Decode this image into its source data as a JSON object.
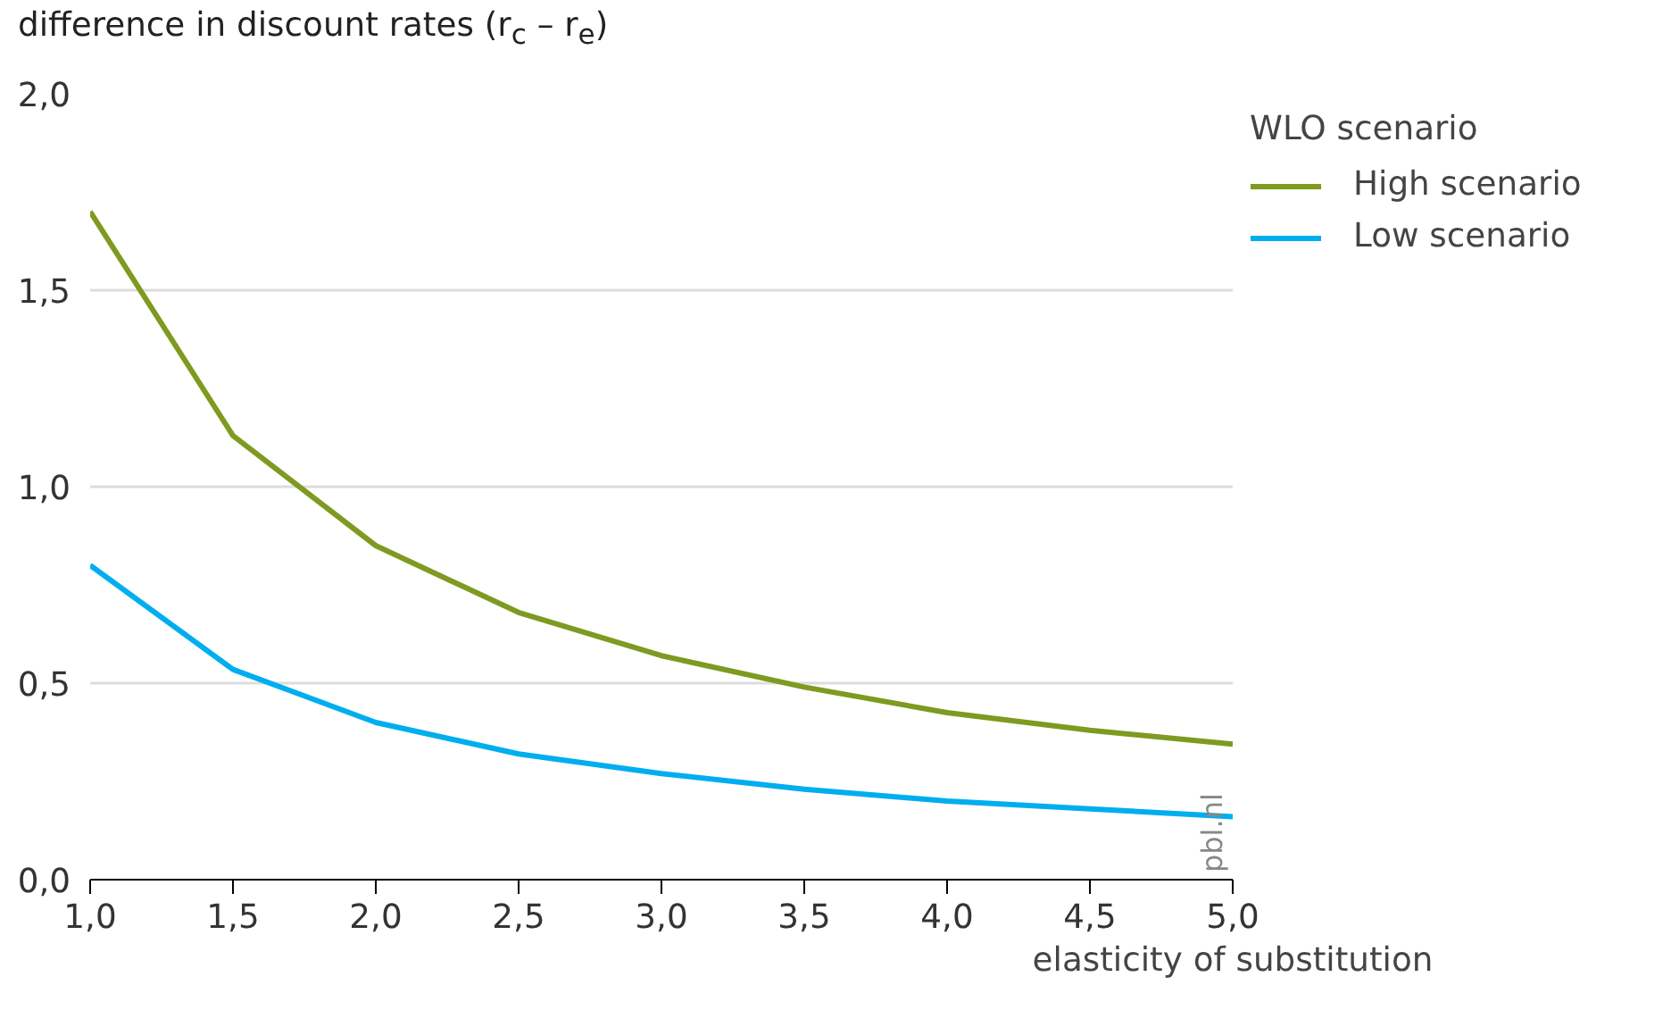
{
  "chart_data": {
    "type": "line",
    "ylabel": "difference in discount rates (r$_{c}$ – r$_{e}$)",
    "xlabel": "elasticity of substitution",
    "legend_title": "WLO scenario",
    "x": [
      1.0,
      1.5,
      2.0,
      2.5,
      3.0,
      3.5,
      4.0,
      4.5,
      5.0
    ],
    "series": [
      {
        "name": "High scenario",
        "color": "#7f9a20",
        "values": [
          1.7,
          1.13,
          0.85,
          0.68,
          0.57,
          0.49,
          0.425,
          0.38,
          0.345
        ]
      },
      {
        "name": "Low scenario",
        "color": "#00aeef",
        "values": [
          0.8,
          0.535,
          0.4,
          0.32,
          0.27,
          0.23,
          0.2,
          0.18,
          0.16
        ]
      }
    ],
    "xlim": [
      1.0,
      5.0
    ],
    "ylim": [
      0.0,
      2.0
    ],
    "xticks": [
      {
        "value": 1.0,
        "label": "1,0"
      },
      {
        "value": 1.5,
        "label": "1,5"
      },
      {
        "value": 2.0,
        "label": "2,0"
      },
      {
        "value": 2.5,
        "label": "2,5"
      },
      {
        "value": 3.0,
        "label": "3,0"
      },
      {
        "value": 3.5,
        "label": "3,5"
      },
      {
        "value": 4.0,
        "label": "4,0"
      },
      {
        "value": 4.5,
        "label": "4,5"
      },
      {
        "value": 5.0,
        "label": "5,0"
      }
    ],
    "yticks": [
      {
        "value": 0.0,
        "label": "0,0"
      },
      {
        "value": 0.5,
        "label": "0,5"
      },
      {
        "value": 1.0,
        "label": "1,0"
      },
      {
        "value": 1.5,
        "label": "1,5"
      },
      {
        "value": 2.0,
        "label": "2,0"
      }
    ],
    "grid": "y",
    "legend": "right",
    "marker": "none",
    "line_style": "solid",
    "annotations": [
      "pbl.nl"
    ]
  }
}
